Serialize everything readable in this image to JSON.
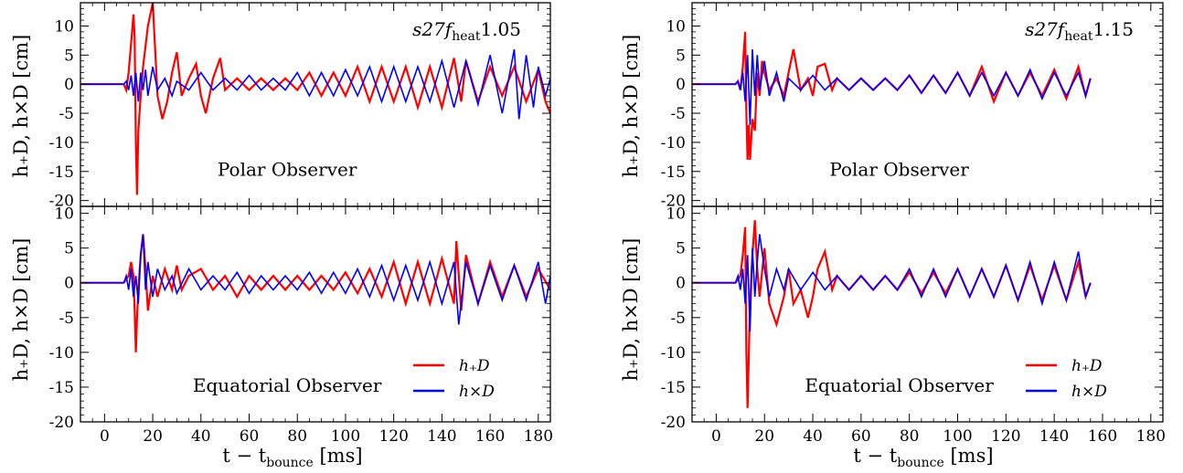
{
  "figure": {
    "xlabel": "t − t",
    "xlabel_sub": "bounce",
    "xlabel_unit": " [ms]",
    "ylabel": "h₊D, h×D [cm]"
  },
  "chart_data": [
    {
      "type": "line",
      "panel": "left-top",
      "title": "s27f",
      "title_sub": "heat",
      "title_suffix": "1.05",
      "annotation": "Polar Observer",
      "xlim": [
        -10,
        185
      ],
      "ylim": [
        -21,
        14
      ],
      "xticks": [
        0,
        20,
        40,
        60,
        80,
        100,
        120,
        140,
        160,
        180
      ],
      "yticks": [
        -20,
        -15,
        -10,
        -5,
        0,
        5,
        10
      ],
      "series": [
        {
          "name": "h₊D",
          "color": "#ff0000",
          "x": [
            -10,
            8,
            9,
            10,
            11,
            12,
            12.5,
            13,
            13.5,
            14,
            15,
            16,
            18,
            20,
            22,
            24,
            26,
            28,
            30,
            32,
            35,
            38,
            40,
            42,
            45,
            48,
            50,
            55,
            60,
            65,
            70,
            75,
            80,
            85,
            90,
            95,
            100,
            105,
            110,
            115,
            120,
            125,
            130,
            135,
            140,
            145,
            148,
            150,
            155,
            160,
            165,
            170,
            175,
            180,
            183,
            185
          ],
          "y": [
            0,
            0,
            -1,
            2,
            7,
            12,
            8,
            -10,
            -19,
            -8,
            -2,
            3,
            10,
            14,
            -2,
            -6,
            -3,
            2,
            5.5,
            -2,
            1,
            3.5,
            -2,
            -5,
            1,
            4.5,
            -1,
            1,
            -1,
            1,
            -1,
            1,
            -1,
            2,
            -2,
            2,
            -2,
            3,
            -3,
            3,
            -3,
            3,
            -4,
            3,
            -4,
            4.5,
            -3,
            4,
            -3,
            3,
            -2,
            3,
            -3,
            2.5,
            -3,
            -5
          ]
        },
        {
          "name": "h×D",
          "color": "#0000ff",
          "x": [
            -10,
            8,
            9,
            10,
            11,
            12,
            13,
            14,
            15,
            16,
            17,
            18,
            20,
            22,
            25,
            28,
            30,
            35,
            40,
            45,
            50,
            55,
            60,
            65,
            70,
            75,
            80,
            85,
            90,
            95,
            100,
            105,
            110,
            115,
            120,
            125,
            130,
            135,
            140,
            145,
            150,
            155,
            160,
            165,
            170,
            172,
            175,
            178,
            180,
            183,
            185
          ],
          "y": [
            0,
            0,
            0.5,
            -1,
            1.5,
            -2,
            2,
            -3,
            2,
            -1,
            2.5,
            -2,
            3,
            -1,
            1,
            -2,
            0.5,
            -1,
            2,
            -1,
            1,
            -1,
            1.5,
            -1,
            1,
            -1,
            2,
            -2,
            2,
            -2,
            2.5,
            -2,
            3,
            -3,
            3,
            -3,
            3,
            -3,
            4,
            -4,
            4,
            -3.5,
            5,
            -5,
            6,
            -6,
            5,
            -4,
            3,
            -2,
            1
          ]
        }
      ]
    },
    {
      "type": "line",
      "panel": "left-bottom",
      "annotation": "Equatorial Observer",
      "xlim": [
        -10,
        185
      ],
      "ylim": [
        -20,
        11
      ],
      "xticks": [
        0,
        20,
        40,
        60,
        80,
        100,
        120,
        140,
        160,
        180
      ],
      "yticks": [
        -20,
        -15,
        -10,
        -5,
        0,
        5,
        10
      ],
      "legend": "lower right",
      "series": [
        {
          "name": "h₊D",
          "color": "#ff0000",
          "x": [
            -10,
            8,
            9,
            10,
            11,
            12,
            12.5,
            13,
            13.5,
            14,
            15,
            16,
            17,
            18,
            20,
            22,
            25,
            28,
            30,
            32,
            35,
            40,
            45,
            50,
            55,
            60,
            65,
            70,
            75,
            80,
            85,
            90,
            95,
            100,
            105,
            110,
            115,
            120,
            125,
            130,
            135,
            140,
            145,
            146,
            148,
            150,
            155,
            160,
            165,
            170,
            175,
            180,
            185
          ],
          "y": [
            0,
            0,
            0.5,
            1,
            3,
            1,
            -4,
            -10,
            -5,
            -1,
            4,
            7,
            2,
            -4,
            1,
            -2,
            2,
            -1,
            2.5,
            -1,
            1,
            2,
            -1,
            1,
            -2,
            1,
            -1,
            1,
            -1,
            1,
            -1,
            1,
            -1,
            1.5,
            -1.5,
            2,
            -2,
            3,
            -3,
            3,
            -3,
            3.5,
            -3,
            6,
            -4,
            4,
            -3,
            3,
            -2,
            2.5,
            -2,
            2,
            -1
          ]
        },
        {
          "name": "h×D",
          "color": "#0000ff",
          "x": [
            -10,
            8,
            9,
            10,
            11,
            12,
            13,
            14,
            15,
            16,
            17,
            18,
            20,
            22,
            25,
            28,
            30,
            35,
            40,
            45,
            50,
            55,
            60,
            65,
            70,
            75,
            80,
            85,
            90,
            95,
            100,
            105,
            110,
            115,
            120,
            125,
            130,
            135,
            140,
            145,
            147,
            150,
            155,
            160,
            165,
            170,
            175,
            180,
            183,
            185
          ],
          "y": [
            0,
            0,
            1,
            -1,
            2,
            -2,
            1,
            -3,
            4,
            7,
            -1,
            3,
            -2,
            2,
            -1,
            1,
            -1.5,
            2,
            -1,
            1,
            -1,
            1.5,
            -1.5,
            1,
            -1,
            1,
            -1,
            1.5,
            -1.5,
            1.5,
            -1.5,
            2,
            -2,
            2.5,
            -2.5,
            2.5,
            -2.5,
            3,
            -3,
            3,
            -6,
            3,
            -3,
            2.5,
            -2.5,
            2.5,
            -2.5,
            3,
            -3,
            1
          ]
        }
      ]
    },
    {
      "type": "line",
      "panel": "right-top",
      "title": "s27f",
      "title_sub": "heat",
      "title_suffix": "1.15",
      "annotation": "Polar Observer",
      "xlim": [
        -10,
        185
      ],
      "ylim": [
        -21,
        14
      ],
      "xticks": [
        0,
        20,
        40,
        60,
        80,
        100,
        120,
        140,
        160,
        180
      ],
      "yticks": [
        -20,
        -15,
        -10,
        -5,
        0,
        5,
        10
      ],
      "series": [
        {
          "name": "h₊D",
          "color": "#ff0000",
          "x": [
            -10,
            8,
            9,
            10,
            11,
            12,
            12.5,
            13,
            13.5,
            14,
            15,
            16,
            17,
            18,
            19,
            20,
            22,
            25,
            28,
            30,
            32,
            35,
            38,
            40,
            42,
            45,
            48,
            50,
            55,
            60,
            65,
            70,
            75,
            80,
            85,
            90,
            95,
            100,
            105,
            110,
            115,
            120,
            125,
            130,
            135,
            140,
            145,
            150,
            153,
            155
          ],
          "y": [
            0,
            0,
            0.5,
            -1,
            3,
            9,
            -5,
            -13,
            -7,
            -13,
            -6,
            -8,
            2,
            -2,
            4,
            2,
            -1,
            1,
            -2,
            2,
            6,
            -1,
            1,
            -2,
            3,
            3.5,
            -1,
            1,
            -1,
            1,
            -1,
            1,
            -1,
            1.5,
            -1.5,
            1.5,
            -1.5,
            2,
            -2,
            3,
            -3,
            2,
            -2,
            2,
            -2,
            2.5,
            -2.5,
            3,
            -2,
            1
          ]
        },
        {
          "name": "h×D",
          "color": "#0000ff",
          "x": [
            -10,
            8,
            9,
            10,
            11,
            12,
            13,
            14,
            15,
            16,
            17,
            18,
            20,
            22,
            25,
            28,
            30,
            35,
            40,
            45,
            50,
            55,
            60,
            65,
            70,
            75,
            80,
            85,
            90,
            95,
            100,
            105,
            110,
            115,
            120,
            125,
            130,
            135,
            140,
            145,
            150,
            153,
            155
          ],
          "y": [
            0,
            0,
            0.5,
            -1,
            2,
            -3,
            5,
            -7,
            6,
            -2,
            5,
            -1,
            4,
            -2,
            2,
            -3,
            1,
            -1,
            1.5,
            -1,
            1,
            -1,
            1,
            -1,
            1,
            -1,
            1.5,
            -1.5,
            1.5,
            -1.5,
            2,
            -2,
            2,
            -2,
            2,
            -2,
            2.5,
            -2.5,
            2,
            -2,
            2,
            -2,
            1
          ]
        }
      ]
    },
    {
      "type": "line",
      "panel": "right-bottom",
      "annotation": "Equatorial Observer",
      "xlim": [
        -10,
        185
      ],
      "ylim": [
        -20,
        11
      ],
      "xticks": [
        0,
        20,
        40,
        60,
        80,
        100,
        120,
        140,
        160,
        180
      ],
      "yticks": [
        -20,
        -15,
        -10,
        -5,
        0,
        5,
        10
      ],
      "legend": "lower right",
      "series": [
        {
          "name": "h₊D",
          "color": "#ff0000",
          "x": [
            -10,
            8,
            9,
            10,
            11,
            12,
            12.5,
            13,
            14,
            15,
            16,
            17,
            18,
            20,
            22,
            25,
            28,
            30,
            32,
            35,
            38,
            40,
            42,
            45,
            48,
            50,
            55,
            60,
            65,
            70,
            75,
            80,
            85,
            90,
            95,
            100,
            105,
            110,
            115,
            120,
            125,
            130,
            135,
            140,
            145,
            150,
            153,
            155
          ],
          "y": [
            0,
            0,
            0.5,
            1,
            4,
            8,
            -10,
            -18,
            -3,
            4,
            9,
            2,
            -2,
            5,
            -3,
            -6,
            -2,
            2,
            -3,
            -1,
            -5,
            -2,
            2,
            4.5,
            -1,
            1,
            -1,
            1,
            -1,
            1,
            -1,
            1.5,
            -1.5,
            1.5,
            -1.5,
            2,
            -2,
            2,
            -2,
            2.5,
            -2.5,
            2.5,
            -2.5,
            2.5,
            -2.5,
            3,
            -2,
            0
          ]
        },
        {
          "name": "h×D",
          "color": "#0000ff",
          "x": [
            -10,
            8,
            9,
            10,
            11,
            12,
            13,
            14,
            15,
            16,
            17,
            18,
            20,
            22,
            25,
            28,
            30,
            35,
            40,
            45,
            50,
            55,
            60,
            65,
            70,
            75,
            80,
            85,
            90,
            95,
            100,
            105,
            110,
            115,
            120,
            125,
            130,
            135,
            140,
            145,
            150,
            153,
            155
          ],
          "y": [
            0,
            0,
            1,
            -1,
            2,
            -3,
            4,
            -7,
            5,
            -2,
            3,
            7,
            2,
            -2,
            2,
            -1,
            2,
            -1,
            1.5,
            -1,
            1,
            -1,
            1,
            -1,
            1,
            -1,
            2,
            -2,
            2,
            -2,
            2,
            -2,
            2,
            -2,
            2.5,
            -2.5,
            3,
            -3,
            3,
            -2.5,
            4.5,
            -2,
            0
          ]
        }
      ]
    }
  ]
}
